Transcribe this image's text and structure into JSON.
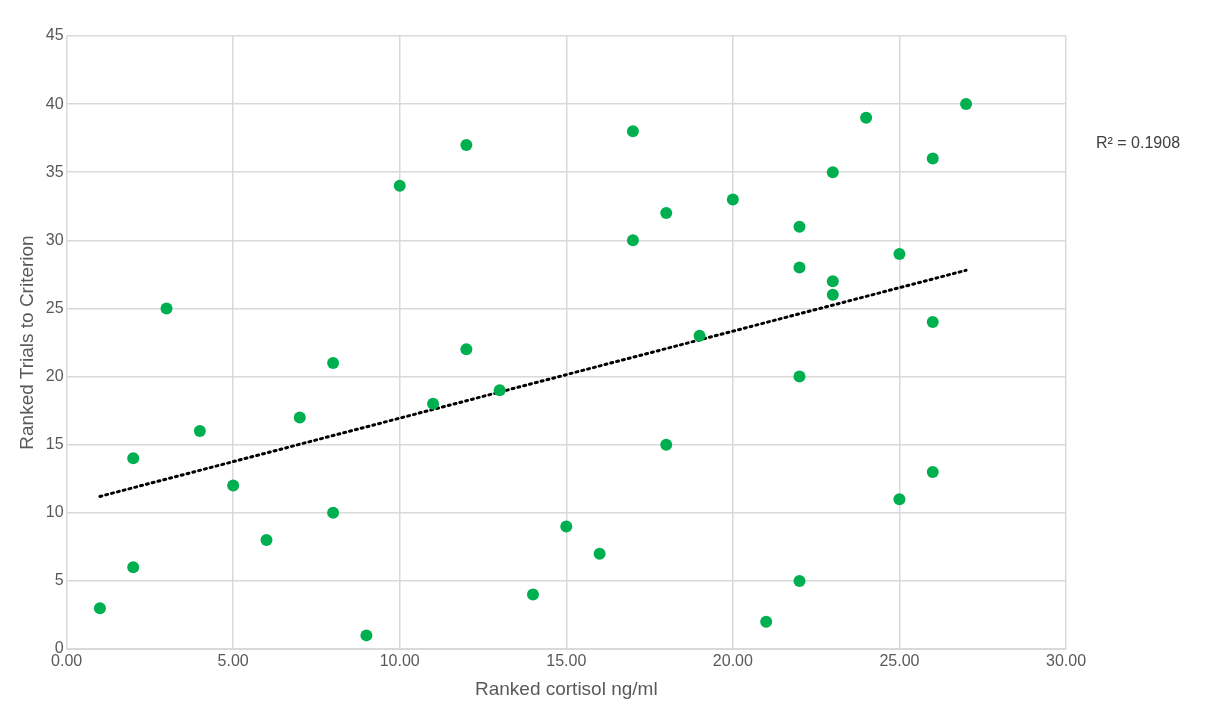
{
  "chart_data": {
    "type": "scatter",
    "xlabel": "Ranked cortisol ng/ml",
    "ylabel": "Ranked Trials to Criterion",
    "annotations": [
      "R² = 0.1908"
    ],
    "xlim": [
      0,
      30
    ],
    "ylim": [
      0,
      45
    ],
    "xticks": [
      {
        "value": 0,
        "label": "0.00"
      },
      {
        "value": 5,
        "label": "5.00"
      },
      {
        "value": 10,
        "label": "10.00"
      },
      {
        "value": 15,
        "label": "15.00"
      },
      {
        "value": 20,
        "label": "20.00"
      },
      {
        "value": 25,
        "label": "25.00"
      },
      {
        "value": 30,
        "label": "30.00"
      }
    ],
    "yticks": [
      0,
      5,
      10,
      15,
      20,
      25,
      30,
      35,
      40,
      45
    ],
    "grid": true,
    "legend": false,
    "marker": "circle",
    "series": [
      {
        "color": "#00b050",
        "x": [
          1,
          2,
          2,
          3,
          4,
          5,
          6,
          7,
          8,
          8,
          9,
          10,
          11,
          12,
          12,
          13,
          14,
          15,
          16,
          17,
          17,
          18,
          18,
          19,
          20,
          21,
          22,
          22,
          22,
          22,
          23,
          23,
          23,
          24,
          25,
          25,
          26,
          26,
          26,
          27
        ],
        "values": [
          3,
          14,
          6,
          25,
          16,
          12,
          8,
          17,
          21,
          10,
          1,
          34,
          18,
          37,
          22,
          19,
          4,
          9,
          7,
          38,
          30,
          32,
          15,
          23,
          33,
          2,
          31,
          28,
          20,
          5,
          35,
          27,
          26,
          39,
          29,
          11,
          36,
          24,
          13,
          40
        ]
      },
      {
        "type": "line",
        "color": "#000000",
        "line_style": "dotted",
        "marker": "none",
        "x": [
          1,
          27
        ],
        "values": [
          11.2,
          27.8
        ]
      }
    ]
  }
}
